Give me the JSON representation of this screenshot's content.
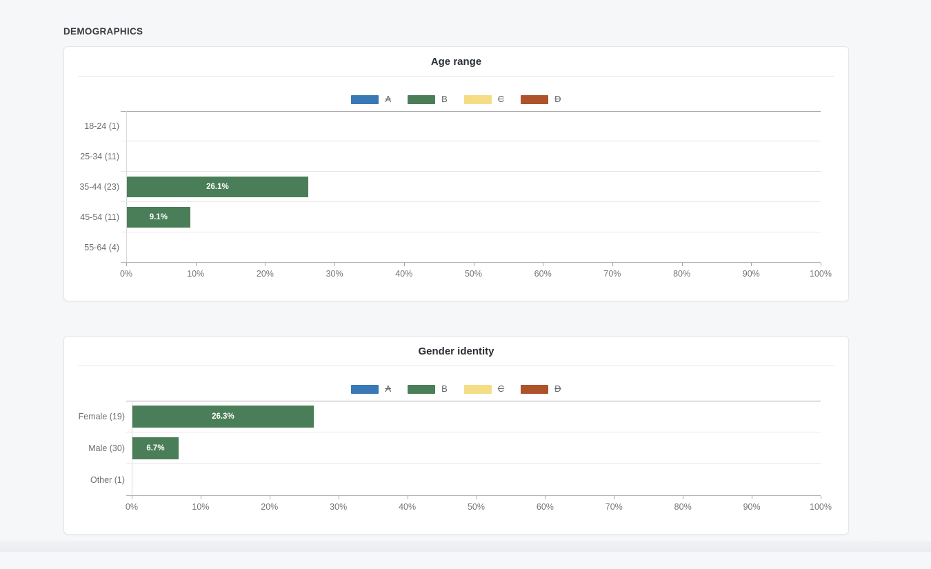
{
  "page": {
    "section_title": "DEMOGRAPHICS"
  },
  "colors": {
    "series_a": "#3879b5",
    "series_b": "#4a7e58",
    "series_c": "#f5dd85",
    "series_d": "#ad5229",
    "bar_label_text": "#ffffff",
    "page_background": "#f6f7f9",
    "card_background": "#ffffff"
  },
  "chart_data": [
    {
      "type": "bar",
      "orientation": "horizontal",
      "title": "Age range",
      "categories": [
        "18-24 (1)",
        "25-34 (11)",
        "35-44 (23)",
        "45-54 (11)",
        "55-64 (4)"
      ],
      "legend": [
        {
          "label": "A",
          "color": "#3879b5",
          "active": false
        },
        {
          "label": "B",
          "color": "#4a7e58",
          "active": true
        },
        {
          "label": "C",
          "color": "#f5dd85",
          "active": false
        },
        {
          "label": "D",
          "color": "#ad5229",
          "active": false
        }
      ],
      "series": [
        {
          "name": "B",
          "color": "#4a7e58",
          "values": [
            0,
            0,
            26.1,
            9.1,
            0
          ],
          "bar_labels": [
            "",
            "",
            "26.1%",
            "9.1%",
            ""
          ]
        }
      ],
      "x_ticks": [
        "0%",
        "10%",
        "20%",
        "30%",
        "40%",
        "50%",
        "60%",
        "70%",
        "80%",
        "90%",
        "100%"
      ],
      "xlim": [
        0,
        100
      ],
      "grid": "row-separators-only",
      "legend_position": "top-center"
    },
    {
      "type": "bar",
      "orientation": "horizontal",
      "title": "Gender identity",
      "categories": [
        "Female (19)",
        "Male (30)",
        "Other (1)"
      ],
      "legend": [
        {
          "label": "A",
          "color": "#3879b5",
          "active": false
        },
        {
          "label": "B",
          "color": "#4a7e58",
          "active": true
        },
        {
          "label": "C",
          "color": "#f5dd85",
          "active": false
        },
        {
          "label": "D",
          "color": "#ad5229",
          "active": false
        }
      ],
      "series": [
        {
          "name": "B",
          "color": "#4a7e58",
          "values": [
            26.3,
            6.7,
            0
          ],
          "bar_labels": [
            "26.3%",
            "6.7%",
            ""
          ]
        }
      ],
      "x_ticks": [
        "0%",
        "10%",
        "20%",
        "30%",
        "40%",
        "50%",
        "60%",
        "70%",
        "80%",
        "90%",
        "100%"
      ],
      "xlim": [
        0,
        100
      ],
      "grid": "row-separators-only",
      "legend_position": "top-center"
    }
  ]
}
